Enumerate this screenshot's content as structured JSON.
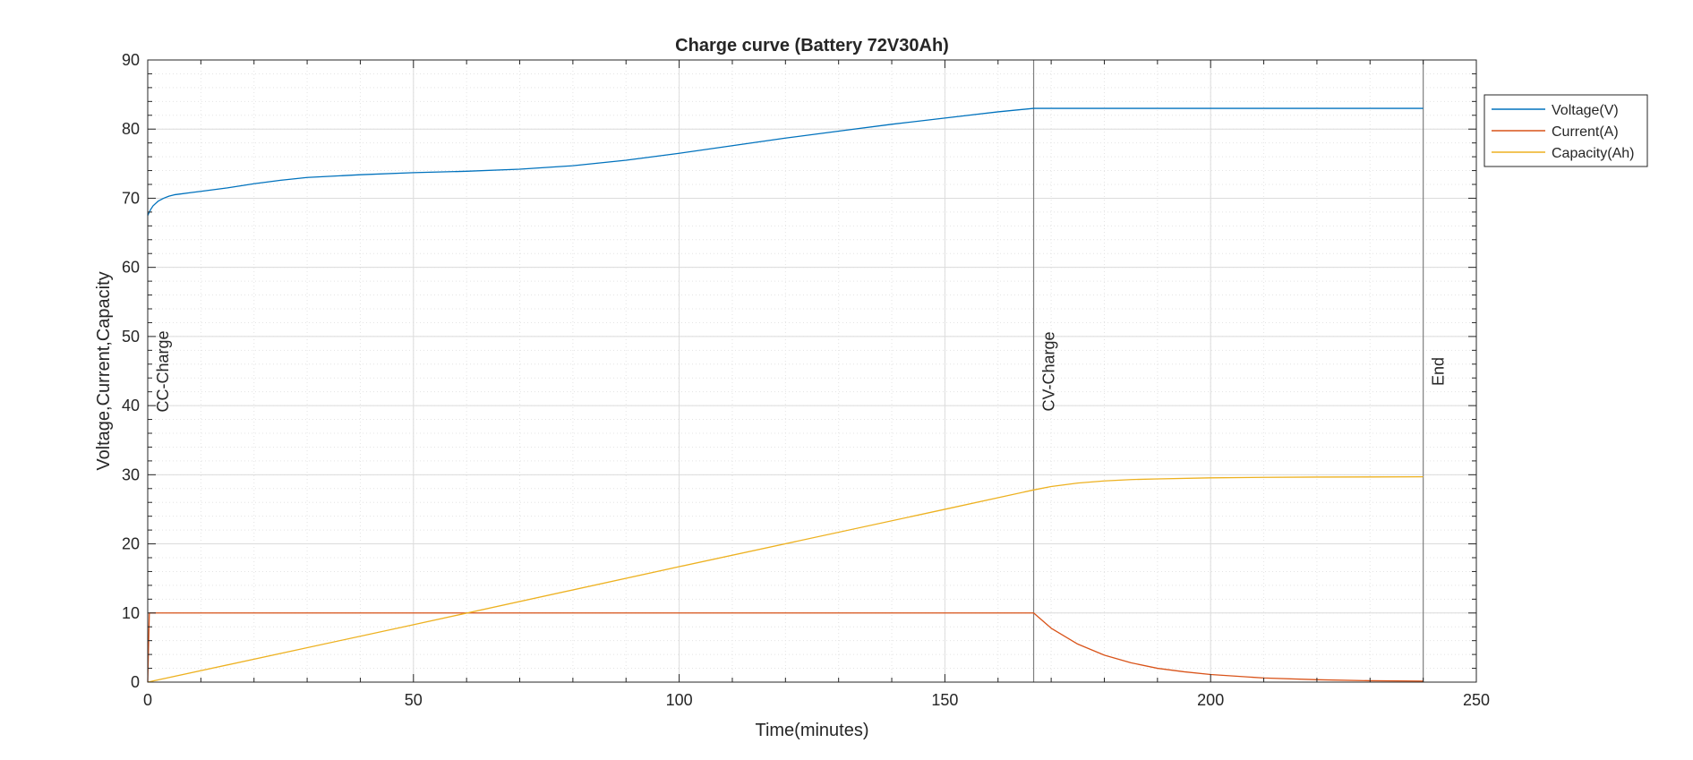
{
  "chart_data": {
    "type": "line",
    "title": "Charge curve (Battery 72V30Ah)",
    "xlabel": "Time(minutes)",
    "ylabel": "Voltage,Current,Capacity",
    "xlim": [
      0,
      250
    ],
    "ylim": [
      0,
      90
    ],
    "xticks": [
      0,
      50,
      100,
      150,
      200,
      250
    ],
    "yticks": [
      0,
      10,
      20,
      30,
      40,
      50,
      60,
      70,
      80,
      90
    ],
    "grid": true,
    "minor_grid": true,
    "legend_position": "outside-top-right",
    "series": [
      {
        "name": "Voltage(V)",
        "color": "#0072BD",
        "x": [
          0,
          0.5,
          1,
          2,
          3,
          4,
          5,
          6,
          8,
          10,
          15,
          20,
          25,
          30,
          40,
          50,
          60,
          70,
          80,
          90,
          100,
          110,
          120,
          130,
          140,
          150,
          160,
          166.7,
          180,
          200,
          220,
          240
        ],
        "y": [
          67.5,
          68.3,
          68.9,
          69.6,
          70.0,
          70.3,
          70.5,
          70.6,
          70.8,
          71.0,
          71.5,
          72.1,
          72.6,
          73.0,
          73.4,
          73.7,
          73.9,
          74.2,
          74.7,
          75.5,
          76.5,
          77.6,
          78.7,
          79.7,
          80.7,
          81.6,
          82.5,
          83.0,
          83.0,
          83.0,
          83.0,
          83.0
        ]
      },
      {
        "name": "Current(A)",
        "color": "#D95319",
        "x": [
          0,
          0.3,
          166.7,
          170,
          175,
          180,
          185,
          190,
          195,
          200,
          210,
          220,
          230,
          240
        ],
        "y": [
          0,
          10,
          10,
          7.8,
          5.5,
          3.9,
          2.8,
          2.0,
          1.5,
          1.1,
          0.6,
          0.35,
          0.2,
          0.15
        ]
      },
      {
        "name": "Capacity(Ah)",
        "color": "#EDB120",
        "x": [
          0,
          50,
          100,
          150,
          166.7,
          170,
          175,
          180,
          185,
          190,
          200,
          210,
          220,
          230,
          240
        ],
        "y": [
          0,
          8.3,
          16.7,
          25.0,
          27.8,
          28.3,
          28.8,
          29.1,
          29.3,
          29.4,
          29.55,
          29.62,
          29.66,
          29.68,
          29.7
        ]
      }
    ],
    "vertical_markers": [
      {
        "x": 0,
        "label": "CC-Charge"
      },
      {
        "x": 166.7,
        "label": "CV-Charge"
      },
      {
        "x": 240,
        "label": "End"
      }
    ]
  }
}
